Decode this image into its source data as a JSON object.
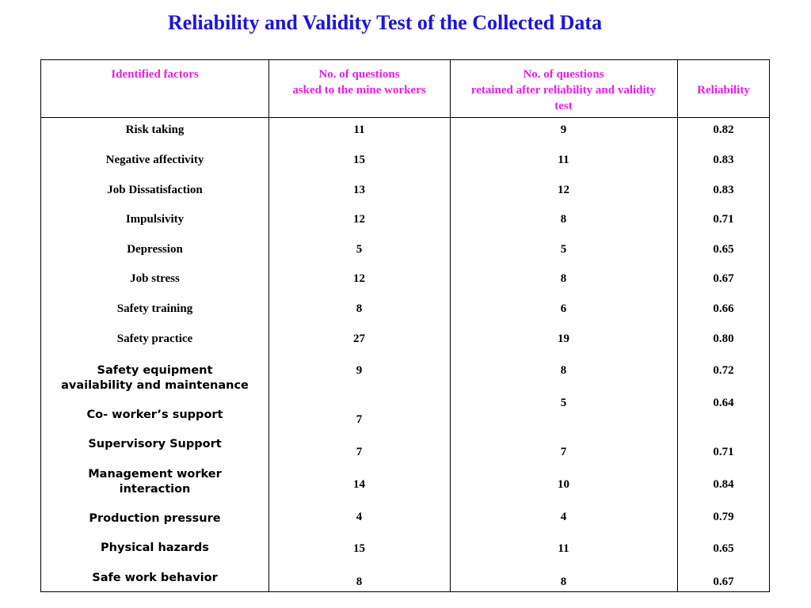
{
  "title": "Reliability and Validity Test of the Collected Data",
  "headers": {
    "factor": "Identified factors",
    "asked_l1": "No. of questions",
    "asked_l2": "asked to the mine workers",
    "retained_l1": "No. of questions",
    "retained_l2": "retained after reliability and validity",
    "retained_l3": "test",
    "reliability": "Reliability"
  },
  "rows": [
    {
      "factor": "Risk taking",
      "asked": "11",
      "retained": "9",
      "reliability": "0.82"
    },
    {
      "factor": "Negative affectivity",
      "asked": "15",
      "retained": "11",
      "reliability": "0.83"
    },
    {
      "factor": "Job  Dissatisfaction",
      "asked": "13",
      "retained": "12",
      "reliability": "0.83"
    },
    {
      "factor": "Impulsivity",
      "asked": "12",
      "retained": "8",
      "reliability": "0.71"
    },
    {
      "factor": "Depression",
      "asked": "5",
      "retained": "5",
      "reliability": "0.65"
    },
    {
      "factor": "Job stress",
      "asked": "12",
      "retained": "8",
      "reliability": "0.67"
    },
    {
      "factor": "Safety training",
      "asked": "8",
      "retained": "6",
      "reliability": "0.66"
    },
    {
      "factor": "Safety practice",
      "asked": "27",
      "retained": "19",
      "reliability": "0.80"
    }
  ],
  "rows2": [
    {
      "factor_l1": "Safety equipment",
      "factor_l2": "availability and maintenance",
      "asked": "9",
      "retained": "8",
      "reliability": "0.72"
    },
    {
      "factor": "Co- worker’s support",
      "asked": "7",
      "retained": "5",
      "reliability": "0.64"
    },
    {
      "factor": "Supervisory Support",
      "asked": "7",
      "retained": "7",
      "reliability": "0.71"
    },
    {
      "factor_l1": "Management worker",
      "factor_l2": "interaction",
      "asked": "14",
      "retained": "10",
      "reliability": "0.84"
    },
    {
      "factor": "Production pressure",
      "asked": "4",
      "retained": "4",
      "reliability": "0.79"
    },
    {
      "factor": "Physical hazards",
      "asked": "15",
      "retained": "11",
      "reliability": "0.65"
    },
    {
      "factor": "Safe work behavior",
      "asked": "8",
      "retained": "8",
      "reliability": "0.67"
    }
  ]
}
